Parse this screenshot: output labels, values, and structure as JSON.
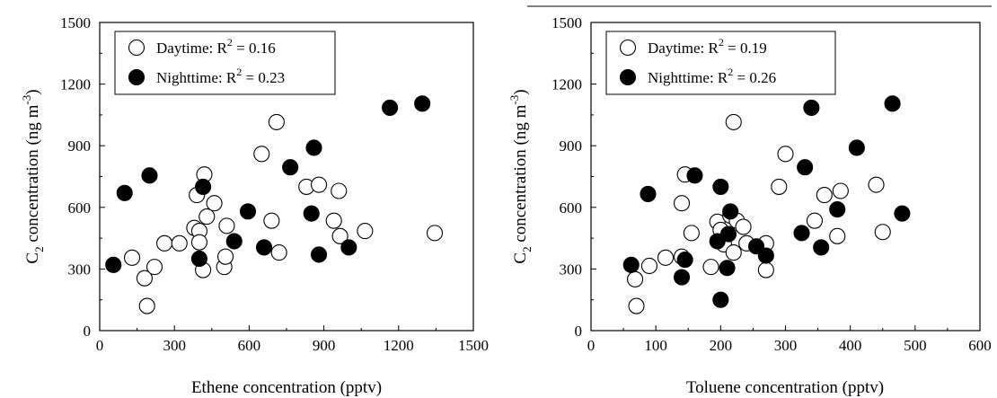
{
  "chart_data": [
    {
      "type": "scatter",
      "xlabel": "Ethene concentration (pptv)",
      "ylabel": {
        "main": "C",
        "sub": "2",
        "rest": " concentration (ng m",
        "sup": "-3",
        "close": ")"
      },
      "xlim": [
        0,
        1500
      ],
      "ylim": [
        0,
        1500
      ],
      "xticks": [
        "0",
        "300",
        "600",
        "900",
        "1200",
        "1500"
      ],
      "yticks": [
        "0",
        "300",
        "600",
        "900",
        "1200",
        "1500"
      ],
      "grid": false,
      "legend_position": "top-left",
      "series": [
        {
          "name": "Daytime",
          "legend_label": "Daytime: R",
          "r2": "0.16",
          "marker": "open-circle",
          "points": [
            [
              130,
              355
            ],
            [
              180,
              255
            ],
            [
              190,
              120
            ],
            [
              220,
              310
            ],
            [
              260,
              425
            ],
            [
              320,
              425
            ],
            [
              380,
              500
            ],
            [
              390,
              660
            ],
            [
              400,
              485
            ],
            [
              400,
              430
            ],
            [
              415,
              295
            ],
            [
              420,
              760
            ],
            [
              430,
              555
            ],
            [
              460,
              620
            ],
            [
              500,
              310
            ],
            [
              505,
              360
            ],
            [
              510,
              510
            ],
            [
              650,
              860
            ],
            [
              690,
              535
            ],
            [
              710,
              1015
            ],
            [
              720,
              380
            ],
            [
              830,
              700
            ],
            [
              880,
              710
            ],
            [
              940,
              535
            ],
            [
              960,
              680
            ],
            [
              965,
              460
            ],
            [
              1065,
              485
            ],
            [
              1345,
              475
            ]
          ]
        },
        {
          "name": "Nighttime",
          "legend_label": "Nighttime: R",
          "r2": "0.23",
          "marker": "filled-circle",
          "points": [
            [
              55,
              320
            ],
            [
              100,
              670
            ],
            [
              200,
              755
            ],
            [
              400,
              350
            ],
            [
              415,
              700
            ],
            [
              540,
              435
            ],
            [
              595,
              580
            ],
            [
              660,
              405
            ],
            [
              765,
              795
            ],
            [
              850,
              570
            ],
            [
              860,
              890
            ],
            [
              880,
              370
            ],
            [
              1000,
              405
            ],
            [
              1165,
              1085
            ],
            [
              1295,
              1105
            ]
          ]
        }
      ]
    },
    {
      "type": "scatter",
      "xlabel": "Toluene concentration (pptv)",
      "ylabel": {
        "main": "C",
        "sub": "2",
        "rest": " concentration (ng m",
        "sup": "-3",
        "close": ")"
      },
      "xlim": [
        0,
        600
      ],
      "ylim": [
        0,
        1500
      ],
      "xticks": [
        "0",
        "100",
        "200",
        "300",
        "400",
        "500",
        "600"
      ],
      "yticks": [
        "0",
        "300",
        "600",
        "900",
        "1200",
        "1500"
      ],
      "grid": false,
      "legend_position": "top-left",
      "series": [
        {
          "name": "Daytime",
          "legend_label": "Daytime: R",
          "r2": "0.19",
          "marker": "open-circle",
          "points": [
            [
              68,
              250
            ],
            [
              70,
              120
            ],
            [
              90,
              315
            ],
            [
              115,
              355
            ],
            [
              140,
              360
            ],
            [
              140,
              620
            ],
            [
              145,
              760
            ],
            [
              155,
              475
            ],
            [
              185,
              310
            ],
            [
              195,
              530
            ],
            [
              200,
              490
            ],
            [
              205,
              420
            ],
            [
              215,
              560
            ],
            [
              220,
              1015
            ],
            [
              220,
              380
            ],
            [
              225,
              535
            ],
            [
              235,
              505
            ],
            [
              240,
              425
            ],
            [
              270,
              295
            ],
            [
              270,
              425
            ],
            [
              290,
              700
            ],
            [
              300,
              860
            ],
            [
              345,
              535
            ],
            [
              360,
              660
            ],
            [
              380,
              460
            ],
            [
              385,
              680
            ],
            [
              440,
              710
            ],
            [
              450,
              480
            ]
          ]
        },
        {
          "name": "Nighttime",
          "legend_label": "Nighttime: R",
          "r2": "0.26",
          "marker": "filled-circle",
          "points": [
            [
              62,
              320
            ],
            [
              88,
              665
            ],
            [
              140,
              260
            ],
            [
              145,
              345
            ],
            [
              160,
              755
            ],
            [
              195,
              435
            ],
            [
              200,
              700
            ],
            [
              200,
              150
            ],
            [
              210,
              305
            ],
            [
              212,
              470
            ],
            [
              215,
              580
            ],
            [
              255,
              410
            ],
            [
              270,
              365
            ],
            [
              325,
              475
            ],
            [
              330,
              795
            ],
            [
              340,
              1085
            ],
            [
              380,
              590
            ],
            [
              355,
              405
            ],
            [
              410,
              890
            ],
            [
              465,
              1105
            ],
            [
              480,
              570
            ]
          ]
        }
      ]
    }
  ]
}
